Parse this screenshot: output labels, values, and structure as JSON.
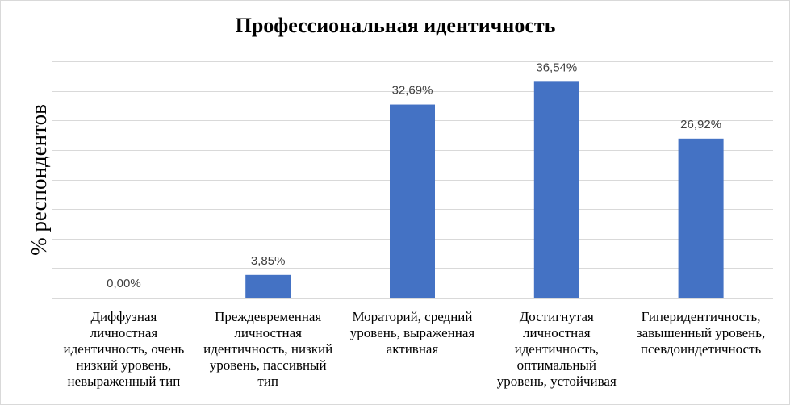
{
  "chart_data": {
    "type": "bar",
    "title": "Профессиональная идентичность",
    "ylabel": "% респондентов",
    "xlabel": "",
    "categories": [
      [
        "Диффузная",
        "личностная",
        "идентичность, очень",
        "низкий уровень,",
        "невыраженный тип"
      ],
      [
        "Преждевременная",
        "личностная",
        "идентичность, низкий",
        "уровень, пассивный",
        "тип"
      ],
      [
        "Мораторий, средний",
        "уровень, выраженная",
        "активная"
      ],
      [
        "Достигнутая",
        "личностная",
        "идентичность,",
        "оптимальный",
        "уровень, устойчивая"
      ],
      [
        "Гиперидентичность,",
        "завышенный уровень,",
        "псевдоиндетичность"
      ]
    ],
    "values": [
      0.0,
      3.85,
      32.69,
      36.54,
      26.92
    ],
    "data_labels": [
      "0,00%",
      "3,85%",
      "32,69%",
      "36,54%",
      "26,92%"
    ],
    "ylim": [
      0,
      40
    ],
    "gridlines": true,
    "gridline_step": 5,
    "legend": "none",
    "bar_color": "#4472c4",
    "gridline_color": "#d9d9d9"
  }
}
